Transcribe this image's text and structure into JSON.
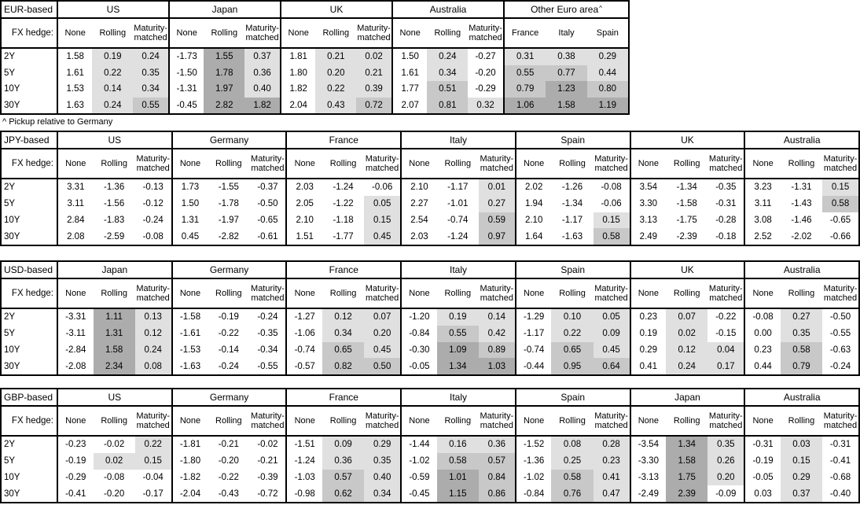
{
  "meta": {
    "colors": {
      "border": "#000000",
      "text": "#000000",
      "background": "#ffffff",
      "shade_light": "#e0e0e0",
      "shade_medium": "#c8c8c8",
      "shade_dark": "#acacac"
    },
    "shading_rule": "Rolling/Maturity-matched and pickup columns: value < 0 white, 0 to 0.5 light, 0.5 to 1.0 medium, 1.0+ dark; None columns unshaded"
  },
  "footnote": "^ Pickup relative to Germany",
  "chart_data": {
    "type": "table",
    "tables": [
      {
        "base": "EUR-based",
        "fx_hedge_label": "FX hedge:",
        "tenors": [
          "2Y",
          "5Y",
          "10Y",
          "30Y"
        ],
        "groups": [
          {
            "name": "US",
            "cols": [
              "None",
              "Rolling",
              "Maturity-matched"
            ],
            "rows": [
              [
                "1.58",
                "0.19",
                "0.24"
              ],
              [
                "1.61",
                "0.22",
                "0.35"
              ],
              [
                "1.53",
                "0.14",
                "0.34"
              ],
              [
                "1.63",
                "0.24",
                "0.55"
              ]
            ]
          },
          {
            "name": "Japan",
            "cols": [
              "None",
              "Rolling",
              "Maturity-matched"
            ],
            "rows": [
              [
                "-1.73",
                "1.55",
                "0.37"
              ],
              [
                "-1.50",
                "1.78",
                "0.36"
              ],
              [
                "-1.31",
                "1.97",
                "0.40"
              ],
              [
                "-0.45",
                "2.82",
                "1.82"
              ]
            ]
          },
          {
            "name": "UK",
            "cols": [
              "None",
              "Rolling",
              "Maturity-matched"
            ],
            "rows": [
              [
                "1.81",
                "0.21",
                "0.02"
              ],
              [
                "1.80",
                "0.20",
                "0.21"
              ],
              [
                "1.82",
                "0.22",
                "0.39"
              ],
              [
                "2.04",
                "0.43",
                "0.72"
              ]
            ]
          },
          {
            "name": "Australia",
            "cols": [
              "None",
              "Rolling",
              "Maturity-matched"
            ],
            "rows": [
              [
                "1.50",
                "0.24",
                "-0.27"
              ],
              [
                "1.61",
                "0.34",
                "-0.20"
              ],
              [
                "1.77",
                "0.51",
                "-0.29"
              ],
              [
                "2.07",
                "0.81",
                "0.32"
              ]
            ]
          },
          {
            "name": "Other Euro area",
            "note_mark": "^",
            "cols": [
              "France",
              "Italy",
              "Spain"
            ],
            "rows": [
              [
                "0.31",
                "0.38",
                "0.29"
              ],
              [
                "0.55",
                "0.77",
                "0.44"
              ],
              [
                "0.79",
                "1.23",
                "0.80"
              ],
              [
                "1.06",
                "1.58",
                "1.19"
              ]
            ]
          }
        ]
      },
      {
        "base": "JPY-based",
        "fx_hedge_label": "FX hedge:",
        "tenors": [
          "2Y",
          "5Y",
          "10Y",
          "30Y"
        ],
        "groups": [
          {
            "name": "US",
            "cols": [
              "None",
              "Rolling",
              "Maturity-matched"
            ],
            "rows": [
              [
                "3.31",
                "-1.36",
                "-0.13"
              ],
              [
                "3.11",
                "-1.56",
                "-0.12"
              ],
              [
                "2.84",
                "-1.83",
                "-0.24"
              ],
              [
                "2.08",
                "-2.59",
                "-0.08"
              ]
            ]
          },
          {
            "name": "Germany",
            "cols": [
              "None",
              "Rolling",
              "Maturity-matched"
            ],
            "rows": [
              [
                "1.73",
                "-1.55",
                "-0.37"
              ],
              [
                "1.50",
                "-1.78",
                "-0.50"
              ],
              [
                "1.31",
                "-1.97",
                "-0.65"
              ],
              [
                "0.45",
                "-2.82",
                "-0.61"
              ]
            ]
          },
          {
            "name": "France",
            "cols": [
              "None",
              "Rolling",
              "Maturity-matched"
            ],
            "rows": [
              [
                "2.03",
                "-1.24",
                "-0.06"
              ],
              [
                "2.05",
                "-1.22",
                "0.05"
              ],
              [
                "2.10",
                "-1.18",
                "0.15"
              ],
              [
                "1.51",
                "-1.77",
                "0.45"
              ]
            ]
          },
          {
            "name": "Italy",
            "cols": [
              "None",
              "Rolling",
              "Maturity-matched"
            ],
            "rows": [
              [
                "2.10",
                "-1.17",
                "0.01"
              ],
              [
                "2.27",
                "-1.01",
                "0.27"
              ],
              [
                "2.54",
                "-0.74",
                "0.59"
              ],
              [
                "2.03",
                "-1.24",
                "0.97"
              ]
            ]
          },
          {
            "name": "Spain",
            "cols": [
              "None",
              "Rolling",
              "Maturity-matched"
            ],
            "rows": [
              [
                "2.02",
                "-1.26",
                "-0.08"
              ],
              [
                "1.94",
                "-1.34",
                "-0.06"
              ],
              [
                "2.10",
                "-1.17",
                "0.15"
              ],
              [
                "1.64",
                "-1.63",
                "0.58"
              ]
            ]
          },
          {
            "name": "UK",
            "cols": [
              "None",
              "Rolling",
              "Maturity-matched"
            ],
            "rows": [
              [
                "3.54",
                "-1.34",
                "-0.35"
              ],
              [
                "3.30",
                "-1.58",
                "-0.31"
              ],
              [
                "3.13",
                "-1.75",
                "-0.28"
              ],
              [
                "2.49",
                "-2.39",
                "-0.18"
              ]
            ]
          },
          {
            "name": "Australia",
            "cols": [
              "None",
              "Rolling",
              "Maturity-matched"
            ],
            "rows": [
              [
                "3.23",
                "-1.31",
                "0.15"
              ],
              [
                "3.11",
                "-1.43",
                "0.58"
              ],
              [
                "3.08",
                "-1.46",
                "-0.65"
              ],
              [
                "2.52",
                "-2.02",
                "-0.66"
              ]
            ]
          }
        ]
      },
      {
        "base": "USD-based",
        "fx_hedge_label": "FX hedge:",
        "tenors": [
          "2Y",
          "5Y",
          "10Y",
          "30Y"
        ],
        "groups": [
          {
            "name": "Japan",
            "cols": [
              "None",
              "Rolling",
              "Maturity-matched"
            ],
            "rows": [
              [
                "-3.31",
                "1.11",
                "0.13"
              ],
              [
                "-3.11",
                "1.31",
                "0.12"
              ],
              [
                "-2.84",
                "1.58",
                "0.24"
              ],
              [
                "-2.08",
                "2.34",
                "0.08"
              ]
            ]
          },
          {
            "name": "Germany",
            "cols": [
              "None",
              "Rolling",
              "Maturity-matched"
            ],
            "rows": [
              [
                "-1.58",
                "-0.19",
                "-0.24"
              ],
              [
                "-1.61",
                "-0.22",
                "-0.35"
              ],
              [
                "-1.53",
                "-0.14",
                "-0.34"
              ],
              [
                "-1.63",
                "-0.24",
                "-0.55"
              ]
            ]
          },
          {
            "name": "France",
            "cols": [
              "None",
              "Rolling",
              "Maturity-matched"
            ],
            "rows": [
              [
                "-1.27",
                "0.12",
                "0.07"
              ],
              [
                "-1.06",
                "0.34",
                "0.20"
              ],
              [
                "-0.74",
                "0.65",
                "0.45"
              ],
              [
                "-0.57",
                "0.82",
                "0.50"
              ]
            ]
          },
          {
            "name": "Italy",
            "cols": [
              "None",
              "Rolling",
              "Maturity-matched"
            ],
            "rows": [
              [
                "-1.20",
                "0.19",
                "0.14"
              ],
              [
                "-0.84",
                "0.55",
                "0.42"
              ],
              [
                "-0.30",
                "1.09",
                "0.89"
              ],
              [
                "-0.05",
                "1.34",
                "1.03"
              ]
            ]
          },
          {
            "name": "Spain",
            "cols": [
              "None",
              "Rolling",
              "Maturity-matched"
            ],
            "rows": [
              [
                "-1.29",
                "0.10",
                "0.05"
              ],
              [
                "-1.17",
                "0.22",
                "0.09"
              ],
              [
                "-0.74",
                "0.65",
                "0.45"
              ],
              [
                "-0.44",
                "0.95",
                "0.64"
              ]
            ]
          },
          {
            "name": "UK",
            "cols": [
              "None",
              "Rolling",
              "Maturity-matched"
            ],
            "rows": [
              [
                "0.23",
                "0.07",
                "-0.22"
              ],
              [
                "0.19",
                "0.02",
                "-0.15"
              ],
              [
                "0.29",
                "0.12",
                "0.04"
              ],
              [
                "0.41",
                "0.24",
                "0.17"
              ]
            ]
          },
          {
            "name": "Australia",
            "cols": [
              "None",
              "Rolling",
              "Maturity-matched"
            ],
            "rows": [
              [
                "-0.08",
                "0.27",
                "-0.50"
              ],
              [
                "0.00",
                "0.35",
                "-0.55"
              ],
              [
                "0.23",
                "0.58",
                "-0.63"
              ],
              [
                "0.44",
                "0.79",
                "-0.24"
              ]
            ]
          }
        ]
      },
      {
        "base": "GBP-based",
        "fx_hedge_label": "FX hedge:",
        "tenors": [
          "2Y",
          "5Y",
          "10Y",
          "30Y"
        ],
        "groups": [
          {
            "name": "US",
            "cols": [
              "None",
              "Rolling",
              "Maturity-matched"
            ],
            "rows": [
              [
                "-0.23",
                "-0.02",
                "0.22"
              ],
              [
                "-0.19",
                "0.02",
                "0.15"
              ],
              [
                "-0.29",
                "-0.08",
                "-0.04"
              ],
              [
                "-0.41",
                "-0.20",
                "-0.17"
              ]
            ]
          },
          {
            "name": "Germany",
            "cols": [
              "None",
              "Rolling",
              "Maturity-matched"
            ],
            "rows": [
              [
                "-1.81",
                "-0.21",
                "-0.02"
              ],
              [
                "-1.80",
                "-0.20",
                "-0.21"
              ],
              [
                "-1.82",
                "-0.22",
                "-0.39"
              ],
              [
                "-2.04",
                "-0.43",
                "-0.72"
              ]
            ]
          },
          {
            "name": "France",
            "cols": [
              "None",
              "Rolling",
              "Maturity-matched"
            ],
            "rows": [
              [
                "-1.51",
                "0.09",
                "0.29"
              ],
              [
                "-1.24",
                "0.36",
                "0.35"
              ],
              [
                "-1.03",
                "0.57",
                "0.40"
              ],
              [
                "-0.98",
                "0.62",
                "0.34"
              ]
            ]
          },
          {
            "name": "Italy",
            "cols": [
              "None",
              "Rolling",
              "Maturity-matched"
            ],
            "rows": [
              [
                "-1.44",
                "0.16",
                "0.36"
              ],
              [
                "-1.02",
                "0.58",
                "0.57"
              ],
              [
                "-0.59",
                "1.01",
                "0.84"
              ],
              [
                "-0.45",
                "1.15",
                "0.86"
              ]
            ]
          },
          {
            "name": "Spain",
            "cols": [
              "None",
              "Rolling",
              "Maturity-matched"
            ],
            "rows": [
              [
                "-1.52",
                "0.08",
                "0.28"
              ],
              [
                "-1.36",
                "0.25",
                "0.23"
              ],
              [
                "-1.02",
                "0.58",
                "0.41"
              ],
              [
                "-0.84",
                "0.76",
                "0.47"
              ]
            ]
          },
          {
            "name": "Japan",
            "cols": [
              "None",
              "Rolling",
              "Maturity-matched"
            ],
            "rows": [
              [
                "-3.54",
                "1.34",
                "0.35"
              ],
              [
                "-3.30",
                "1.58",
                "0.26"
              ],
              [
                "-3.13",
                "1.75",
                "0.20"
              ],
              [
                "-2.49",
                "2.39",
                "-0.09"
              ]
            ]
          },
          {
            "name": "Australia",
            "cols": [
              "None",
              "Rolling",
              "Maturity-matched"
            ],
            "rows": [
              [
                "-0.31",
                "0.03",
                "-0.31"
              ],
              [
                "-0.19",
                "0.15",
                "-0.41"
              ],
              [
                "-0.05",
                "0.29",
                "-0.68"
              ],
              [
                "0.03",
                "0.37",
                "-0.40"
              ]
            ]
          }
        ]
      }
    ]
  }
}
